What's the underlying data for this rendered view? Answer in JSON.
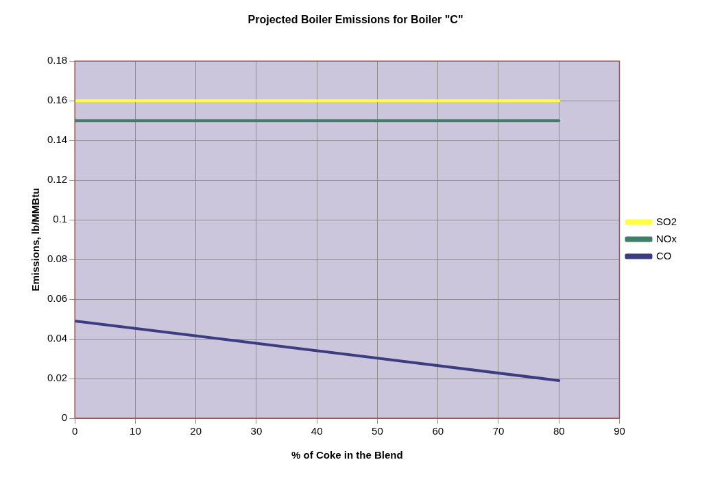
{
  "chart_data": {
    "type": "line",
    "title": "Projected Boiler Emissions for Boiler \"C\"",
    "xlabel": "% of Coke in the Blend",
    "ylabel": "Emissions, lb/MMBtu",
    "x": [
      0,
      80
    ],
    "series": [
      {
        "name": "SO2",
        "color": "#ffff40",
        "values": [
          0.16,
          0.16
        ]
      },
      {
        "name": "NOx",
        "color": "#3f7f6a",
        "values": [
          0.15,
          0.15
        ]
      },
      {
        "name": "CO",
        "color": "#3c3c80",
        "values": [
          0.049,
          0.019
        ]
      }
    ],
    "xlim": [
      0,
      90
    ],
    "xticks": [
      0,
      10,
      20,
      30,
      40,
      50,
      60,
      70,
      80,
      90
    ],
    "ylim": [
      0,
      0.18
    ],
    "yticks": [
      0,
      0.02,
      0.04,
      0.06,
      0.08,
      0.1,
      0.12,
      0.14,
      0.16,
      0.18
    ],
    "grid": true,
    "legend": "right",
    "marker": "none",
    "line_style": "solid"
  }
}
